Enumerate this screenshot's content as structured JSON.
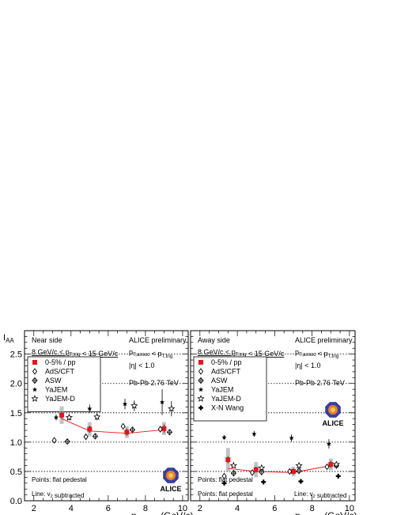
{
  "y_axis_label": "I_AA",
  "x_axis_label": "p_T,assoc (GeV/c)",
  "colors": {
    "data": "#e8141b",
    "syst": "#aaaaaa",
    "line": "#e8141b",
    "models": "#000000"
  },
  "chart_data": [
    {
      "type": "scatter",
      "panel": "left",
      "title": "Near side",
      "header_right": "ALICE preliminary",
      "kinematics_left": "8 GeV/c < p_T,trig < 15 GeV/c",
      "kinematics_right": "p_T,assoc < p_T,trig",
      "eta_text": "|η| < 1.0",
      "system_text": "Pb-Pb 2.76 TeV",
      "note_points": "Points: flat pedestal",
      "note_line": "Line: v_2 subtracted",
      "logo_text": "ALICE",
      "xlim": [
        1.5,
        10.3
      ],
      "ylim": [
        0,
        2.9
      ],
      "x_ticks": [
        2,
        4,
        6,
        8,
        10
      ],
      "y_ticks": [
        0,
        0.5,
        1.0,
        1.5,
        2.0,
        2.5
      ],
      "reference_lines": [
        0.5,
        1.0,
        1.5,
        2.0,
        2.5
      ],
      "legend": [
        {
          "marker": "square",
          "label": "0-5% / pp"
        },
        {
          "marker": "diamond",
          "label": "AdS/CFT"
        },
        {
          "marker": "diamond-cross",
          "label": "ASW"
        },
        {
          "marker": "star-filled",
          "label": "YaJEM"
        },
        {
          "marker": "star-open",
          "label": "YaJEM-D"
        }
      ],
      "series": [
        {
          "name": "0-5% / pp",
          "marker": "square",
          "x": [
            3.5,
            5.0,
            7.0,
            9.0
          ],
          "y": [
            1.46,
            1.22,
            1.17,
            1.23
          ],
          "err": [
            0.06,
            0.06,
            0.06,
            0.07
          ],
          "syst": [
            0.15,
            0.12,
            0.1,
            0.11
          ]
        },
        {
          "name": "0-5% / pp (v2 subtracted)",
          "marker": "line",
          "x": [
            3.5,
            5.0,
            7.0,
            9.0
          ],
          "y": [
            1.4,
            1.19,
            1.15,
            1.21
          ]
        },
        {
          "name": "AdS/CFT",
          "marker": "diamond",
          "x": [
            3.1,
            4.8,
            6.8,
            8.8
          ],
          "y": [
            1.03,
            1.09,
            1.27,
            1.22
          ]
        },
        {
          "name": "ASW",
          "marker": "diamond-cross",
          "x": [
            3.8,
            5.3,
            7.3,
            9.3
          ],
          "y": [
            1.01,
            1.1,
            1.21,
            1.17
          ]
        },
        {
          "name": "YaJEM",
          "marker": "star-filled",
          "x": [
            3.2,
            5.0,
            6.9,
            8.9
          ],
          "y": [
            1.42,
            1.57,
            1.65,
            1.68
          ],
          "err": [
            0.05,
            0.07,
            0.09,
            0.22
          ]
        },
        {
          "name": "YaJEM-D",
          "marker": "star-open",
          "x": [
            3.9,
            5.4,
            7.4,
            9.4
          ],
          "y": [
            1.42,
            1.43,
            1.62,
            1.57
          ],
          "err": [
            0.05,
            0.06,
            0.09,
            0.13
          ]
        }
      ]
    },
    {
      "type": "scatter",
      "panel": "right",
      "title": "Away side",
      "header_right": "ALICE preliminary",
      "kinematics_left": "8 GeV/c < p_T,trig < 15 GeV/c",
      "kinematics_right": "p_T,assoc < p_T,trig",
      "eta_text": "|η| < 1.0",
      "system_text": "Pb-Pb 2.76 TeV",
      "note_points": "Points: flat pedestal",
      "note_line": "Line: v_2 subtracted",
      "logo_text": "ALICE",
      "xlim": [
        1.5,
        10.3
      ],
      "ylim": [
        0,
        2.9
      ],
      "x_ticks": [
        2,
        4,
        6,
        8,
        10
      ],
      "y_ticks": [
        0,
        0.5,
        1.0,
        1.5,
        2.0,
        2.5
      ],
      "reference_lines": [
        0.5,
        1.0,
        1.5,
        2.0,
        2.5
      ],
      "legend": [
        {
          "marker": "square",
          "label": "0-5% / pp"
        },
        {
          "marker": "diamond",
          "label": "AdS/CFT"
        },
        {
          "marker": "diamond-cross",
          "label": "ASW"
        },
        {
          "marker": "star-filled",
          "label": "YaJEM"
        },
        {
          "marker": "star-open",
          "label": "YaJEM-D"
        },
        {
          "marker": "plus",
          "label": "X-N Wang"
        }
      ],
      "series": [
        {
          "name": "0-5% / pp",
          "marker": "square",
          "x": [
            3.5,
            5.0,
            7.0,
            9.0
          ],
          "y": [
            0.7,
            0.53,
            0.5,
            0.62
          ],
          "err": [
            0.06,
            0.05,
            0.05,
            0.06
          ],
          "syst": [
            0.2,
            0.13,
            0.08,
            0.1
          ]
        },
        {
          "name": "0-5% / pp (v2 subtracted)",
          "marker": "line",
          "x": [
            3.5,
            5.0,
            7.0,
            9.0
          ],
          "y": [
            0.55,
            0.5,
            0.48,
            0.6
          ]
        },
        {
          "name": "AdS/CFT",
          "marker": "diamond",
          "x": [
            3.3,
            4.8,
            6.8,
            8.8
          ],
          "y": [
            0.42,
            0.48,
            0.5,
            0.58
          ]
        },
        {
          "name": "ASW",
          "marker": "diamond-cross",
          "x": [
            3.8,
            5.3,
            7.3,
            9.3
          ],
          "y": [
            0.47,
            0.49,
            0.51,
            0.6
          ]
        },
        {
          "name": "YaJEM",
          "marker": "star-filled",
          "x": [
            3.3,
            4.9,
            6.9,
            8.9
          ],
          "y": [
            1.08,
            1.14,
            1.07,
            0.97
          ],
          "err": [
            0.04,
            0.05,
            0.06,
            0.08
          ]
        },
        {
          "name": "YaJEM-D",
          "marker": "star-open",
          "x": [
            3.8,
            5.3,
            7.3,
            9.3
          ],
          "y": [
            0.6,
            0.56,
            0.6,
            0.62
          ]
        },
        {
          "name": "X-N Wang",
          "marker": "plus",
          "x": [
            3.3,
            5.4,
            7.4,
            9.4
          ],
          "y": [
            0.3,
            0.32,
            0.33,
            0.42
          ]
        }
      ]
    }
  ]
}
